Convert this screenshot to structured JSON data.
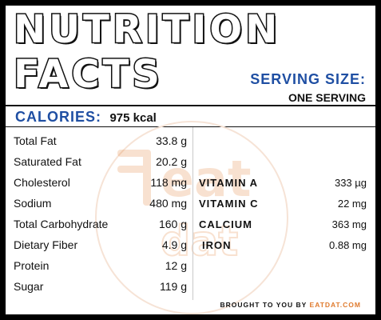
{
  "header": {
    "title_line1": "NUTRITION",
    "title_line2": "FACTS",
    "serving_label": "SERVING SIZE:",
    "serving_value": "ONE SERVING"
  },
  "calories": {
    "label": "CALORIES:",
    "value": "975 kcal"
  },
  "nutrients": [
    {
      "name": "Total Fat",
      "value": "33.8 g"
    },
    {
      "name": "Saturated Fat",
      "value": "20.2 g"
    },
    {
      "name": "Cholesterol",
      "value": "118 mg"
    },
    {
      "name": "Sodium",
      "value": "480 mg"
    },
    {
      "name": "Total Carbohydrate",
      "value": "160 g"
    },
    {
      "name": "Dietary Fiber",
      "value": "4.9 g"
    },
    {
      "name": "Protein",
      "value": "12 g"
    },
    {
      "name": "Sugar",
      "value": "119 g"
    }
  ],
  "vitamins": [
    {
      "name": "VITAMIN A",
      "value": "333 µg"
    },
    {
      "name": "VITAMIN C",
      "value": "22 mg"
    },
    {
      "name": "CALCIUM",
      "value": "363 mg"
    },
    {
      "name": "IRON",
      "value": "0.88 mg"
    }
  ],
  "footer": {
    "prefix": "BROUGHT TO YOU BY",
    "brand": "EATDAT.COM"
  },
  "watermark": {
    "text": "eat dat"
  },
  "colors": {
    "accent": "#1f4fa3",
    "brand": "#e07b2e",
    "border": "#000000"
  }
}
